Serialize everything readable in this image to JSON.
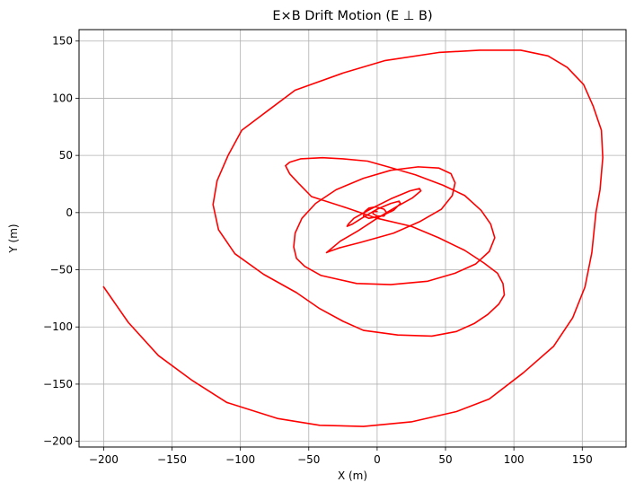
{
  "chart_data": {
    "type": "line",
    "title": "E×B Drift Motion (E ⊥ B)",
    "xlabel": "X (m)",
    "ylabel": "Y (m)",
    "xlim": [
      -218,
      182
    ],
    "ylim": [
      -205,
      160
    ],
    "xticks": [
      -200,
      -150,
      -100,
      -50,
      0,
      50,
      100,
      150
    ],
    "yticks": [
      -200,
      -150,
      -100,
      -50,
      0,
      50,
      100,
      150
    ],
    "xtick_labels": [
      "−200",
      "−150",
      "−100",
      "−50",
      "0",
      "50",
      "100",
      "150"
    ],
    "ytick_labels": [
      "−200",
      "−150",
      "−100",
      "−50",
      "0",
      "50",
      "100",
      "150"
    ],
    "grid": true,
    "series": [
      {
        "color": "#ff0000",
        "x": [
          -200,
          -182,
          -160,
          -135,
          -110,
          -73,
          -42,
          -10,
          25,
          58,
          82,
          107,
          129,
          143,
          152,
          157,
          160,
          163,
          165,
          164,
          158,
          151,
          139,
          125,
          105,
          75,
          45,
          6,
          -25,
          -60,
          -79,
          -99,
          -109,
          -117,
          -120,
          -116,
          -104,
          -83,
          -59,
          -42,
          -25,
          -10,
          15,
          40,
          58,
          71,
          81,
          89,
          93,
          92,
          88,
          78,
          64,
          45,
          25,
          0,
          -22,
          -48,
          -57,
          -64,
          -67,
          -64,
          -56,
          -40,
          -25,
          -7,
          8,
          28,
          48,
          64,
          76,
          83,
          86,
          82,
          72,
          57,
          37,
          10,
          -15,
          -41,
          -53,
          -59,
          -61,
          -60,
          -55,
          -45,
          -30,
          -10,
          10,
          30,
          45,
          54,
          57,
          55,
          47,
          31,
          12,
          -12,
          -28,
          -35,
          -37,
          -34,
          -27,
          -14,
          0,
          14,
          26,
          32,
          31,
          24,
          10,
          -5,
          -17,
          -21,
          -22,
          -18,
          -10,
          0,
          10,
          16,
          17,
          12,
          3,
          -6,
          -10,
          -9,
          -6,
          -1,
          5,
          7,
          5,
          0,
          -3,
          -3,
          0
        ],
        "y": [
          -65,
          -96,
          -125,
          -147,
          -166,
          -180,
          -186,
          -187,
          -183,
          -174,
          -163,
          -140,
          -117,
          -92,
          -65,
          -35,
          0,
          20,
          48,
          72,
          93,
          112,
          127,
          137,
          142,
          142,
          140,
          133,
          122,
          107,
          90,
          72,
          50,
          28,
          7,
          -15,
          -36,
          -54,
          -70,
          -84,
          -95,
          -103,
          -107,
          -108,
          -104,
          -97,
          -89,
          -80,
          -72,
          -62,
          -53,
          -44,
          -33,
          -22,
          -12,
          -5,
          4,
          14,
          25,
          34,
          41,
          44,
          47,
          48,
          47,
          45,
          40,
          33,
          24,
          15,
          2,
          -10,
          -22,
          -34,
          -45,
          -53,
          -60,
          -63,
          -62,
          -55,
          -47,
          -40,
          -30,
          -18,
          -5,
          8,
          20,
          30,
          37,
          40,
          39,
          34,
          26,
          15,
          3,
          -8,
          -18,
          -26,
          -31,
          -34,
          -35,
          -32,
          -25,
          -16,
          -5,
          5,
          13,
          19,
          21,
          19,
          12,
          3,
          -5,
          -10,
          -12,
          -10,
          -4,
          3,
          8,
          10,
          8,
          2,
          -3,
          -5,
          -3,
          1,
          4,
          5,
          3,
          0,
          -3,
          -3,
          -1,
          1,
          1
        ]
      }
    ]
  }
}
